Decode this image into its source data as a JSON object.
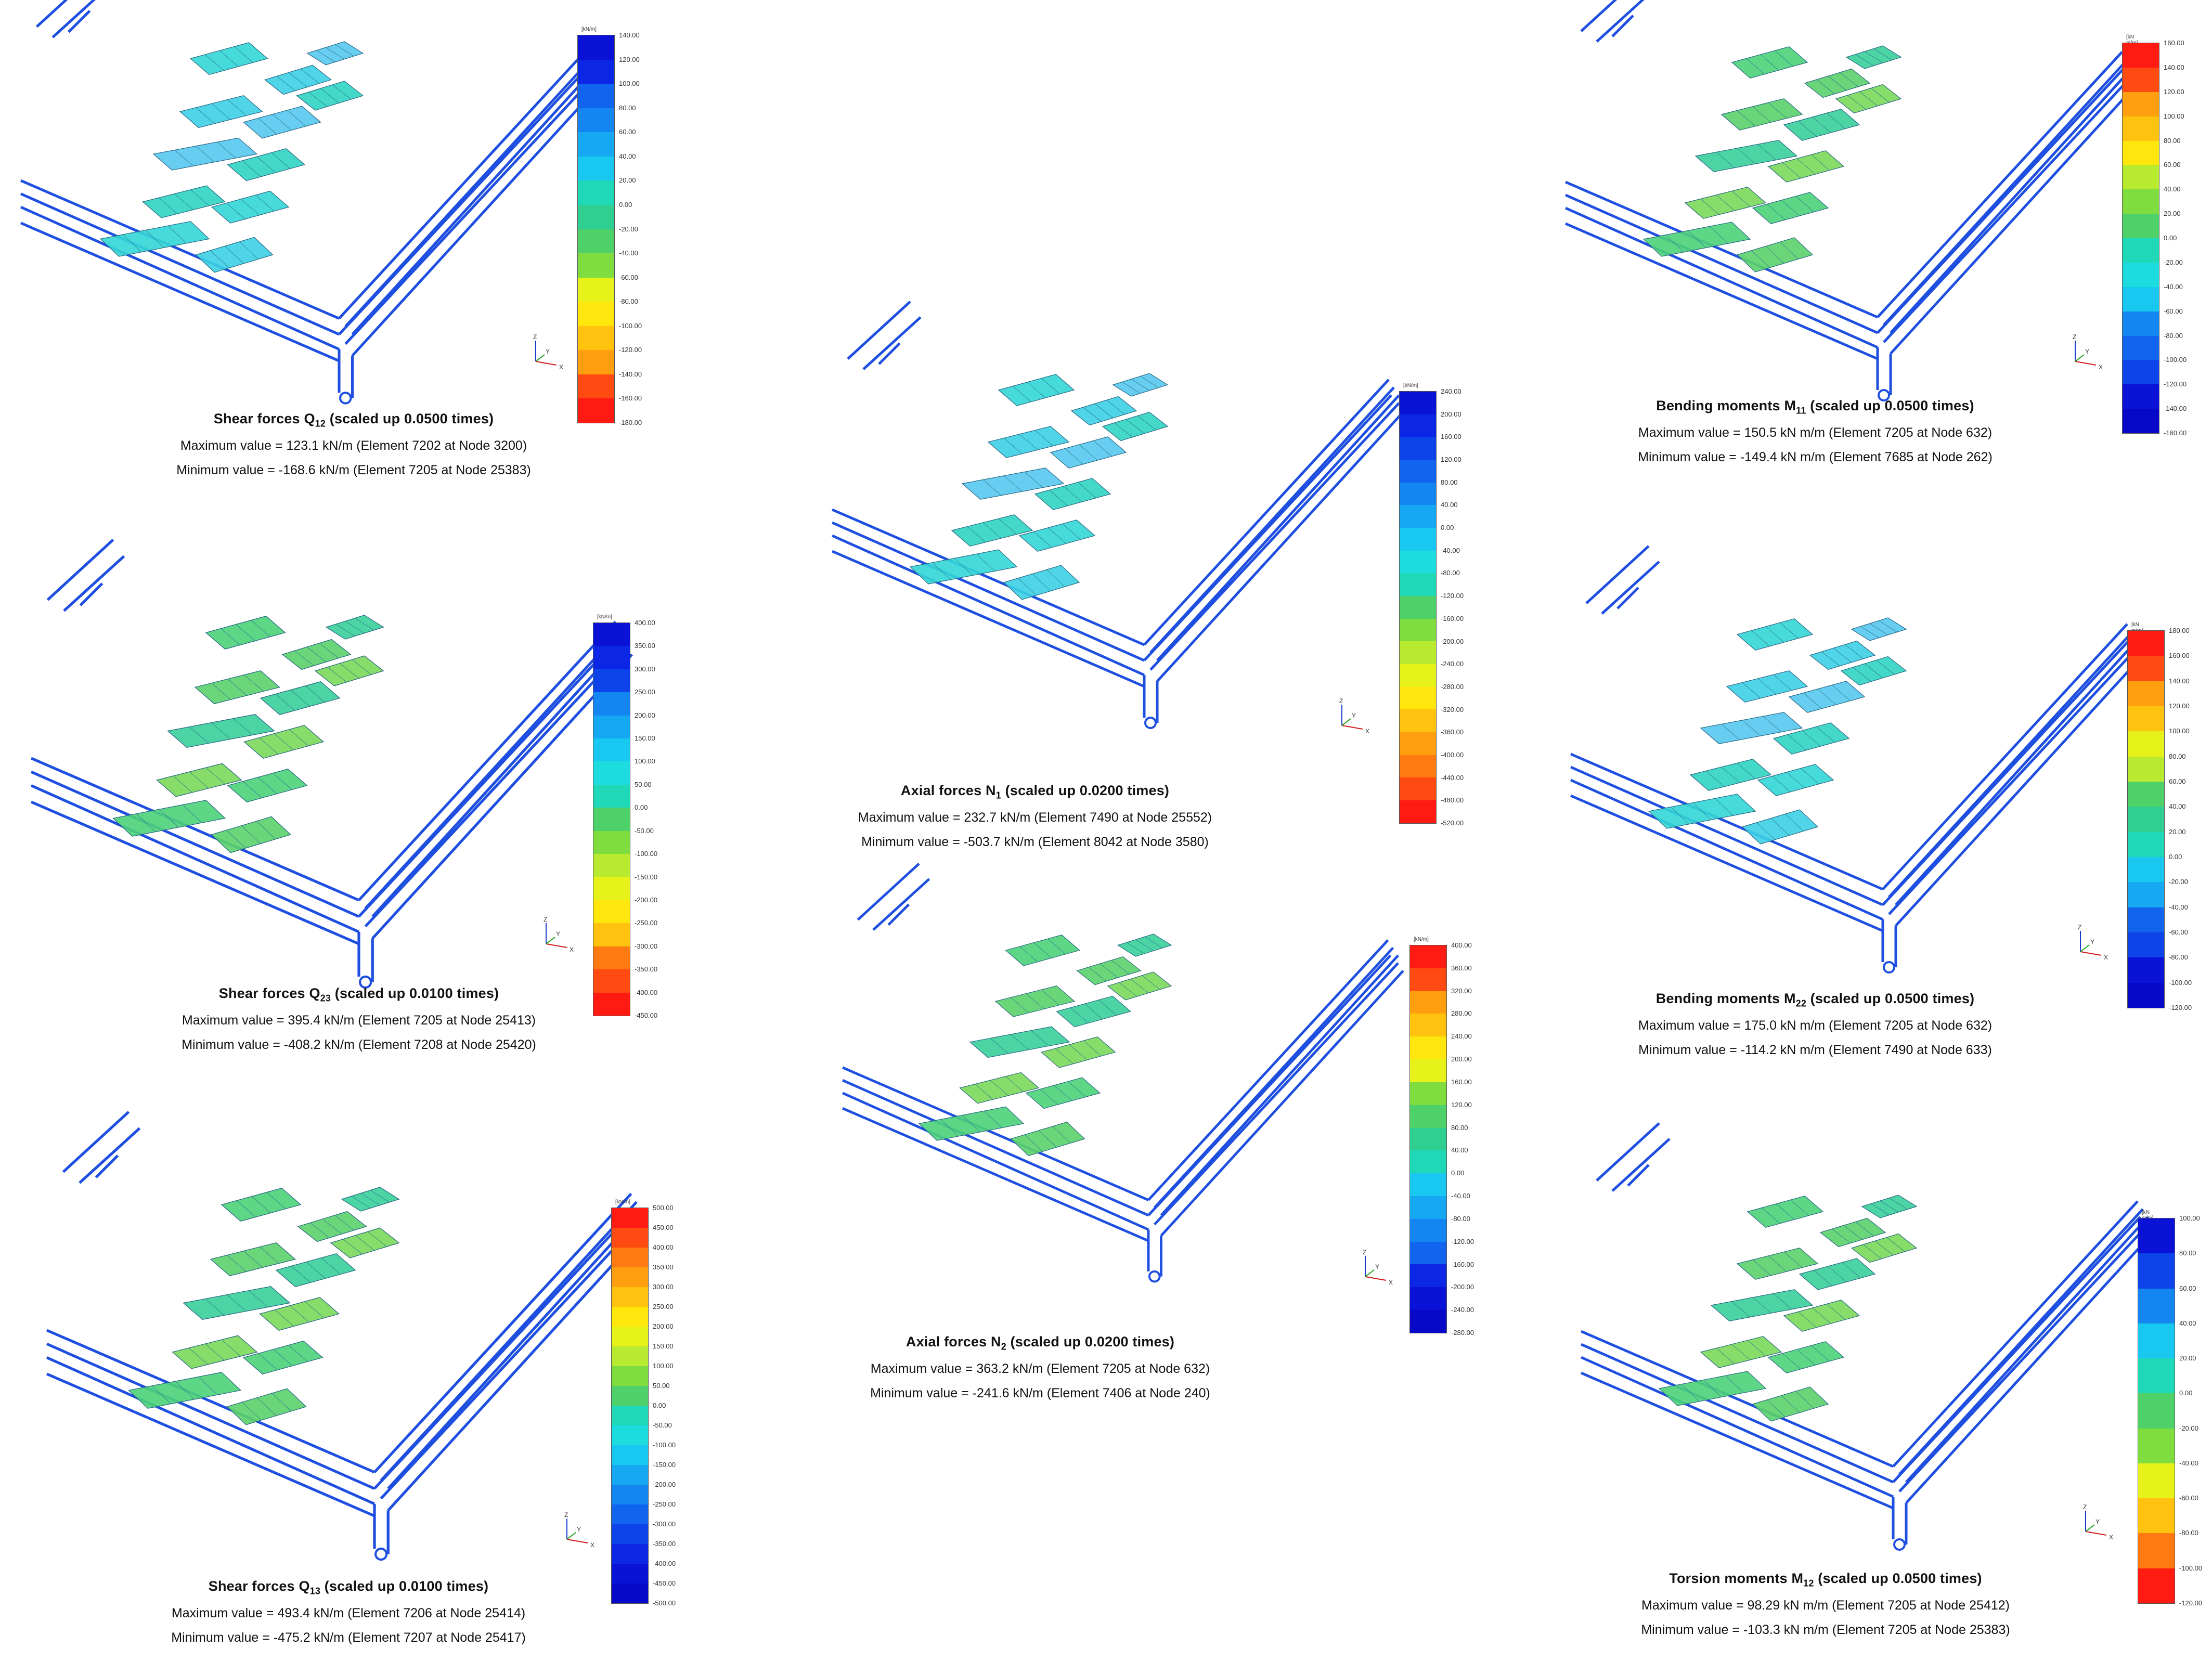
{
  "panels": [
    {
      "id": "q12",
      "title_base": "Shear forces Q",
      "title_sub": "12",
      "title_suffix": " (scaled up 0.0500 times)",
      "max_text": "Maximum value = 123.1 kN/m (Element 7202 at Node 3200)",
      "min_text": "Minimum value = -168.6 kN/m (Element 7205 at Node 25383)",
      "unit": "[kN/m]",
      "ticks": [
        "140.00",
        "120.00",
        "100.00",
        "80.00",
        "60.00",
        "40.00",
        "20.00",
        "0.00",
        "-20.00",
        "-40.00",
        "-60.00",
        "-80.00",
        "-100.00",
        "-120.00",
        "-140.00",
        "-160.00",
        "-180.00"
      ],
      "scheme": "blue-top",
      "patch_tone": "cyan"
    },
    {
      "id": "q23",
      "title_base": "Shear forces Q",
      "title_sub": "23",
      "title_suffix": " (scaled up 0.0100 times)",
      "max_text": "Maximum value = 395.4 kN/m (Element 7205 at Node 25413)",
      "min_text": "Minimum value = -408.2 kN/m (Element 7208 at Node 25420)",
      "unit": "[kN/m]",
      "ticks": [
        "400.00",
        "350.00",
        "300.00",
        "250.00",
        "200.00",
        "150.00",
        "100.00",
        "50.00",
        "0.00",
        "-50.00",
        "-100.00",
        "-150.00",
        "-200.00",
        "-250.00",
        "-300.00",
        "-350.00",
        "-400.00",
        "-450.00"
      ],
      "scheme": "blue-top",
      "patch_tone": "green"
    },
    {
      "id": "q13",
      "title_base": "Shear forces Q",
      "title_sub": "13",
      "title_suffix": " (scaled up 0.0100 times)",
      "max_text": "Maximum value = 493.4 kN/m (Element 7206 at Node 25414)",
      "min_text": "Minimum value = -475.2 kN/m (Element 7207 at Node 25417)",
      "unit": "[kN/m]",
      "ticks": [
        "500.00",
        "450.00",
        "400.00",
        "350.00",
        "300.00",
        "250.00",
        "200.00",
        "150.00",
        "100.00",
        "50.00",
        "0.00",
        "-50.00",
        "-100.00",
        "-150.00",
        "-200.00",
        "-250.00",
        "-300.00",
        "-350.00",
        "-400.00",
        "-450.00",
        "-500.00"
      ],
      "scheme": "red-top",
      "patch_tone": "green"
    },
    {
      "id": "n1",
      "title_base": "Axial forces N",
      "title_sub": "1",
      "title_suffix": " (scaled up 0.0200 times)",
      "max_text": "Maximum value = 232.7 kN/m (Element 7490 at Node 25552)",
      "min_text": "Minimum value = -503.7 kN/m (Element 8042 at Node 3580)",
      "unit": "[kN/m]",
      "ticks": [
        "240.00",
        "200.00",
        "160.00",
        "120.00",
        "80.00",
        "40.00",
        "0.00",
        "-40.00",
        "-80.00",
        "-120.00",
        "-160.00",
        "-200.00",
        "-240.00",
        "-280.00",
        "-320.00",
        "-360.00",
        "-400.00",
        "-440.00",
        "-480.00",
        "-520.00"
      ],
      "scheme": "blue-top",
      "patch_tone": "cyan"
    },
    {
      "id": "n2",
      "title_base": "Axial forces N",
      "title_sub": "2",
      "title_suffix": " (scaled up 0.0200 times)",
      "max_text": "Maximum value = 363.2 kN/m (Element 7205 at Node 632)",
      "min_text": "Minimum value = -241.6 kN/m (Element 7406 at Node 240)",
      "unit": "[kN/m]",
      "ticks": [
        "400.00",
        "360.00",
        "320.00",
        "280.00",
        "240.00",
        "200.00",
        "160.00",
        "120.00",
        "80.00",
        "40.00",
        "0.00",
        "-40.00",
        "-80.00",
        "-120.00",
        "-160.00",
        "-200.00",
        "-240.00",
        "-280.00"
      ],
      "scheme": "red-top",
      "patch_tone": "green"
    },
    {
      "id": "m11",
      "title_base": "Bending moments M",
      "title_sub": "11",
      "title_suffix": " (scaled up 0.0500 times)",
      "max_text": "Maximum value = 150.5 kN m/m (Element 7205 at Node 632)",
      "min_text": "Minimum value = -149.4 kN m/m (Element 7685 at Node 262)",
      "unit": "[kN m/m]",
      "ticks": [
        "160.00",
        "140.00",
        "120.00",
        "100.00",
        "80.00",
        "60.00",
        "40.00",
        "20.00",
        "0.00",
        "-20.00",
        "-40.00",
        "-60.00",
        "-80.00",
        "-100.00",
        "-120.00",
        "-140.00",
        "-160.00"
      ],
      "scheme": "red-top",
      "patch_tone": "green"
    },
    {
      "id": "m22",
      "title_base": "Bending moments M",
      "title_sub": "22",
      "title_suffix": " (scaled up 0.0500 times)",
      "max_text": "Maximum value = 175.0 kN m/m (Element 7205 at Node 632)",
      "min_text": "Minimum value = -114.2 kN m/m (Element 7490 at Node 633)",
      "unit": "[kN m/m]",
      "ticks": [
        "180.00",
        "160.00",
        "140.00",
        "120.00",
        "100.00",
        "80.00",
        "60.00",
        "40.00",
        "20.00",
        "0.00",
        "-20.00",
        "-40.00",
        "-60.00",
        "-80.00",
        "-100.00",
        "-120.00"
      ],
      "scheme": "red-top",
      "patch_tone": "cyan"
    },
    {
      "id": "m12",
      "title_base": "Torsion moments M",
      "title_sub": "12",
      "title_suffix": " (scaled up 0.0500 times)",
      "max_text": "Maximum value = 98.29 kN m/m (Element 7205 at Node 25412)",
      "min_text": "Minimum value = -103.3 kN m/m (Element 7205 at Node 25383)",
      "unit": "[kN m/m]",
      "ticks": [
        "100.00",
        "80.00",
        "60.00",
        "40.00",
        "20.00",
        "0.00",
        "-20.00",
        "-40.00",
        "-60.00",
        "-80.00",
        "-100.00",
        "-120.00"
      ],
      "scheme": "blue-top",
      "patch_tone": "green"
    }
  ],
  "axis_labels": {
    "z": "Z",
    "y": "Y",
    "x": "X"
  },
  "colors": {
    "structure": "#1f4fe0",
    "palette_red_top": [
      "#ff1a12",
      "#ff4a12",
      "#ff7a10",
      "#ff9f10",
      "#ffc20e",
      "#ffe60c",
      "#e6f21a",
      "#b8ea30",
      "#80dd40",
      "#4fd16a",
      "#2ecf90",
      "#1ed8b8",
      "#1cdce0",
      "#19c8f0",
      "#16a8f2",
      "#1386f2",
      "#1064ee",
      "#0d44ea",
      "#0b26e4",
      "#0a12d8",
      "#0808c8"
    ],
    "palette_blue_top": [
      "#0a12d8",
      "#0b26e4",
      "#0d44ea",
      "#1064ee",
      "#1386f2",
      "#16a8f2",
      "#19c8f0",
      "#1cdce0",
      "#1ed8b8",
      "#2ecf90",
      "#4fd16a",
      "#80dd40",
      "#b8ea30",
      "#e6f21a",
      "#ffe60c",
      "#ffc20e",
      "#ff9f10",
      "#ff7a10",
      "#ff4a12",
      "#ff1a12"
    ]
  }
}
